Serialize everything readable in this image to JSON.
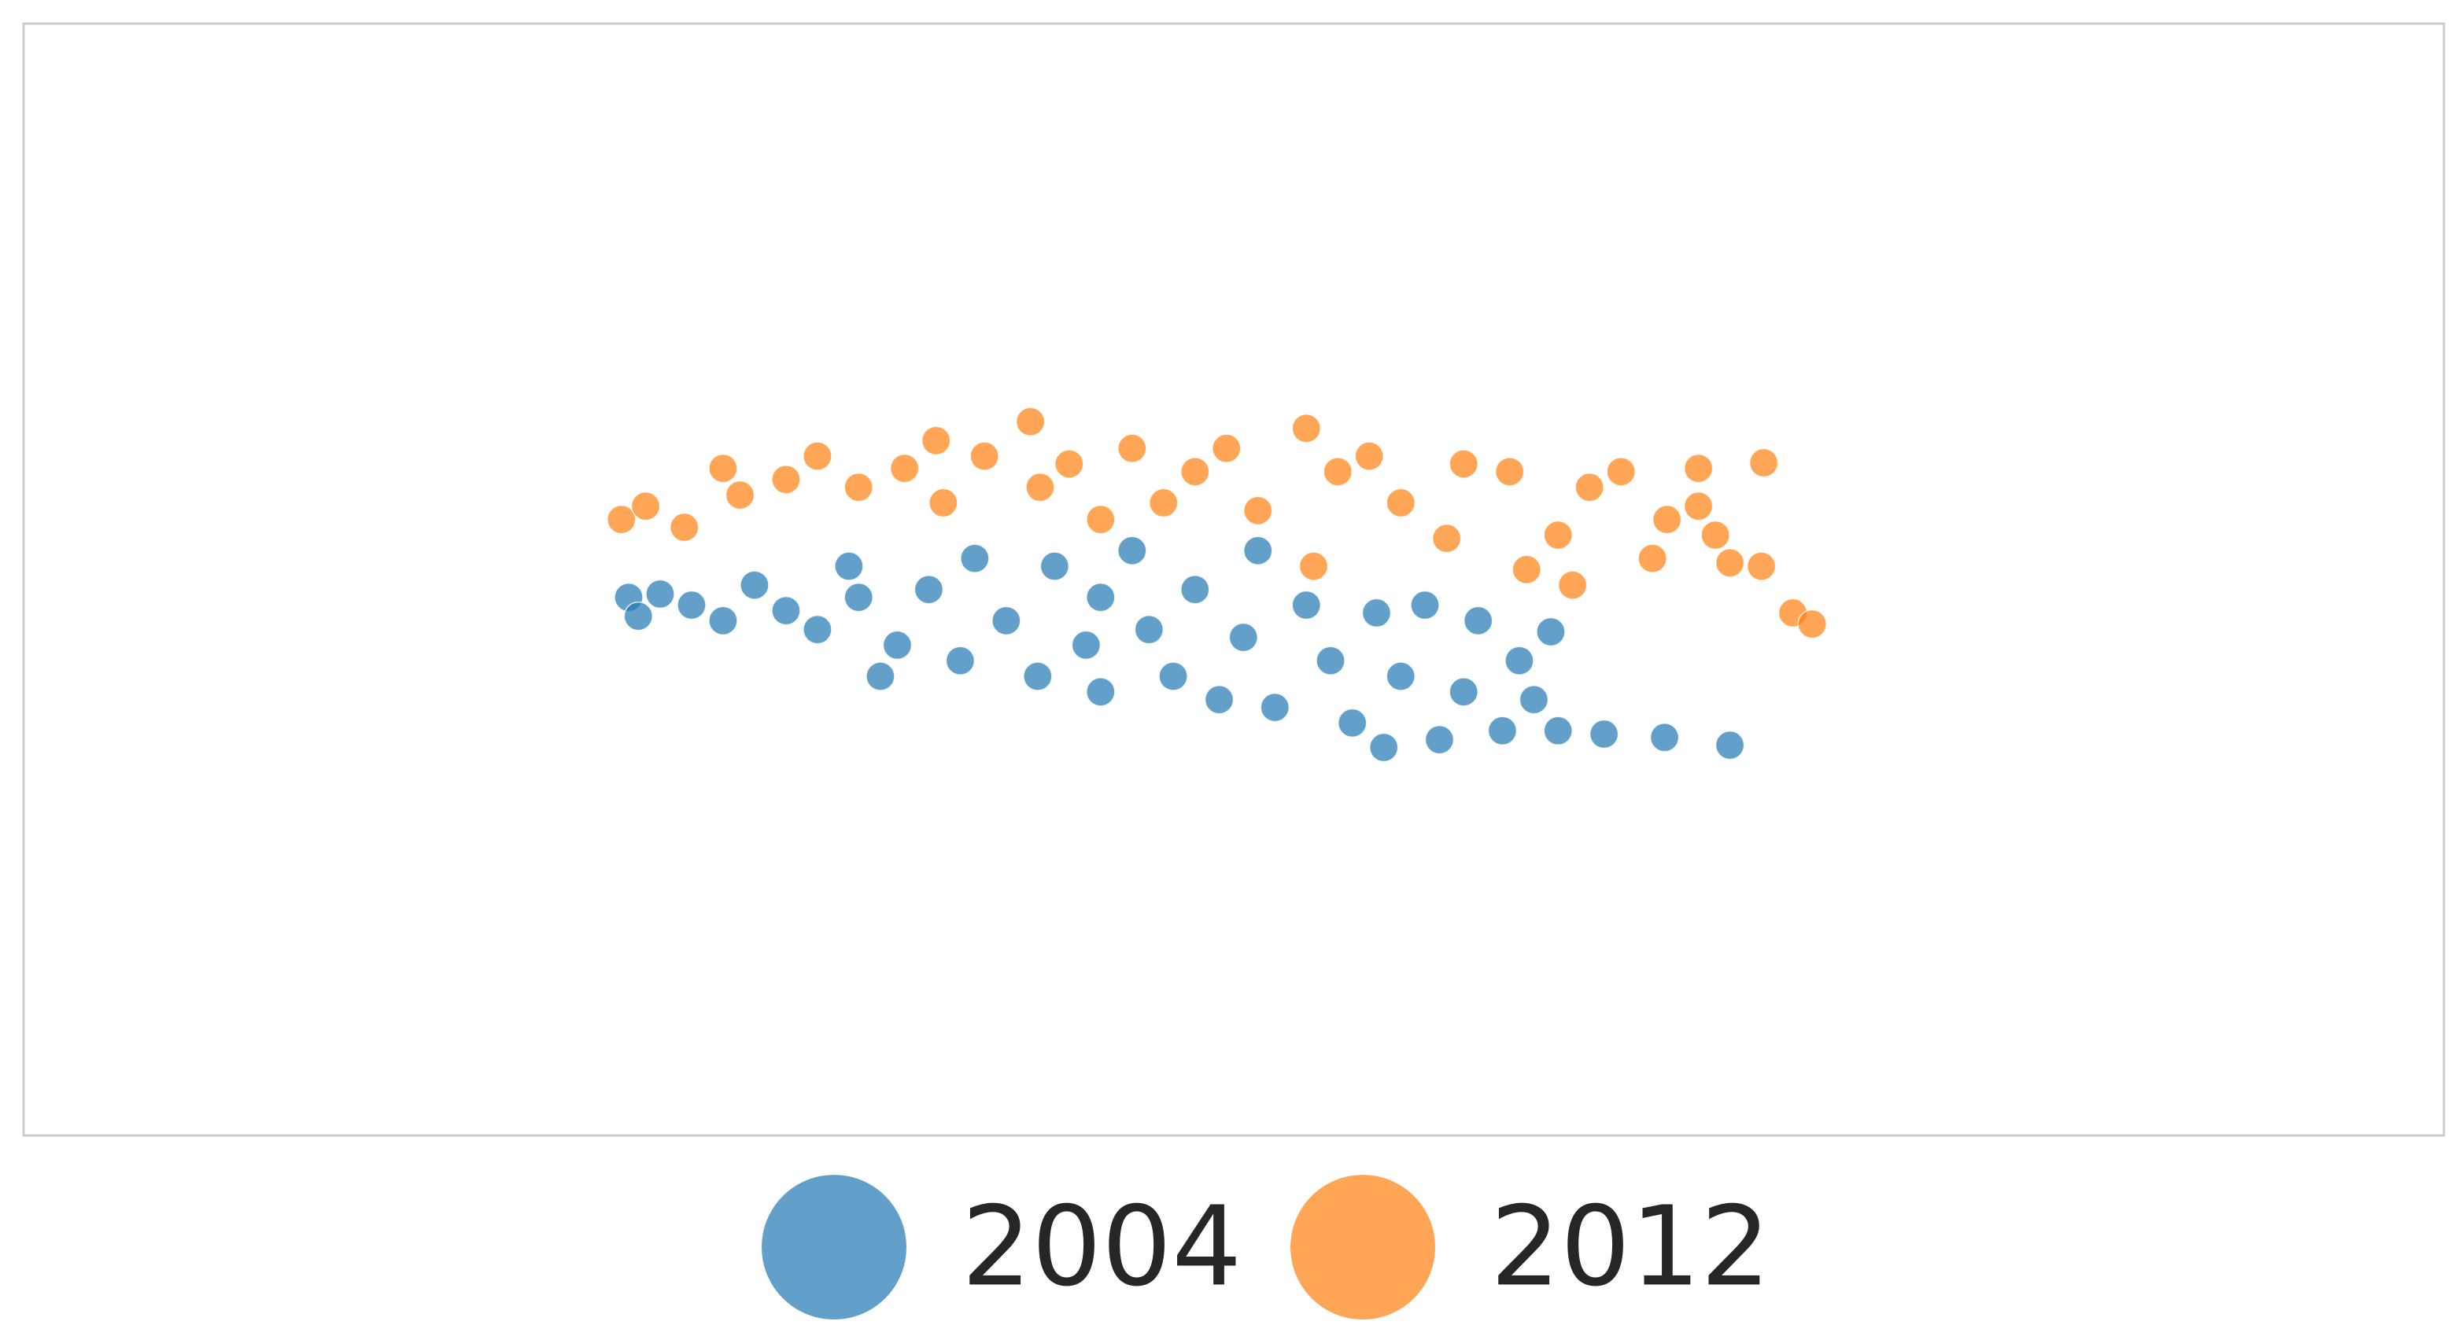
{
  "chart_data": {
    "type": "scatter",
    "xlim": [
      0,
      100
    ],
    "ylim": [
      0,
      100
    ],
    "legend": "bottom",
    "frame": true,
    "alpha": 0.7,
    "series": [
      {
        "name": "2004",
        "color": "#1f77b4",
        "x": [
          25.0,
          25.4,
          26.3,
          27.6,
          28.9,
          30.2,
          31.5,
          32.8,
          34.1,
          34.5,
          36.1,
          37.4,
          38.7,
          39.3,
          40.6,
          41.9,
          42.6,
          43.9,
          44.5,
          45.8,
          46.5,
          47.5,
          48.4,
          49.4,
          50.4,
          51.0,
          51.7,
          53.0,
          54.0,
          54.9,
          55.9,
          56.9,
          57.9,
          58.5,
          59.5,
          60.1,
          61.1,
          61.8,
          62.4,
          63.1,
          63.4,
          65.3,
          67.8,
          70.5,
          56.2,
          44.5,
          35.4
        ],
        "values": [
          48.4,
          46.7,
          48.7,
          47.7,
          46.3,
          49.5,
          47.2,
          45.5,
          51.2,
          48.4,
          44.1,
          49.1,
          42.7,
          51.9,
          46.3,
          41.3,
          51.2,
          44.1,
          39.9,
          52.6,
          45.5,
          41.3,
          49.1,
          39.2,
          44.8,
          52.6,
          38.5,
          47.7,
          42.7,
          37.1,
          47.0,
          41.3,
          47.7,
          35.6,
          39.9,
          46.3,
          36.4,
          42.7,
          39.2,
          45.3,
          36.4,
          36.1,
          35.8,
          35.1,
          34.9,
          48.4,
          41.3
        ]
      },
      {
        "name": "2012",
        "color": "#ff7f0e",
        "x": [
          24.7,
          25.7,
          27.3,
          28.9,
          29.6,
          31.5,
          32.8,
          34.5,
          36.4,
          37.7,
          38.0,
          39.7,
          41.6,
          42.0,
          43.2,
          44.5,
          45.8,
          47.1,
          48.4,
          49.7,
          51.0,
          53.0,
          53.3,
          54.3,
          55.6,
          56.9,
          58.8,
          59.5,
          61.4,
          62.1,
          63.4,
          64.0,
          64.7,
          66.0,
          67.3,
          67.9,
          69.2,
          69.9,
          70.5,
          71.9,
          73.1,
          73.9,
          71.8,
          69.2
        ],
        "values": [
          55.4,
          56.6,
          54.7,
          60.0,
          57.6,
          59.0,
          61.1,
          58.3,
          60.0,
          62.5,
          56.9,
          61.1,
          64.2,
          58.3,
          60.4,
          55.4,
          61.8,
          56.9,
          59.7,
          61.8,
          56.2,
          63.6,
          51.2,
          59.7,
          61.1,
          56.9,
          53.7,
          60.4,
          59.7,
          50.9,
          54.0,
          49.5,
          58.3,
          59.7,
          51.9,
          55.4,
          60.0,
          54.0,
          51.5,
          60.5,
          47.0,
          46.0,
          51.2,
          56.6
        ]
      }
    ]
  }
}
